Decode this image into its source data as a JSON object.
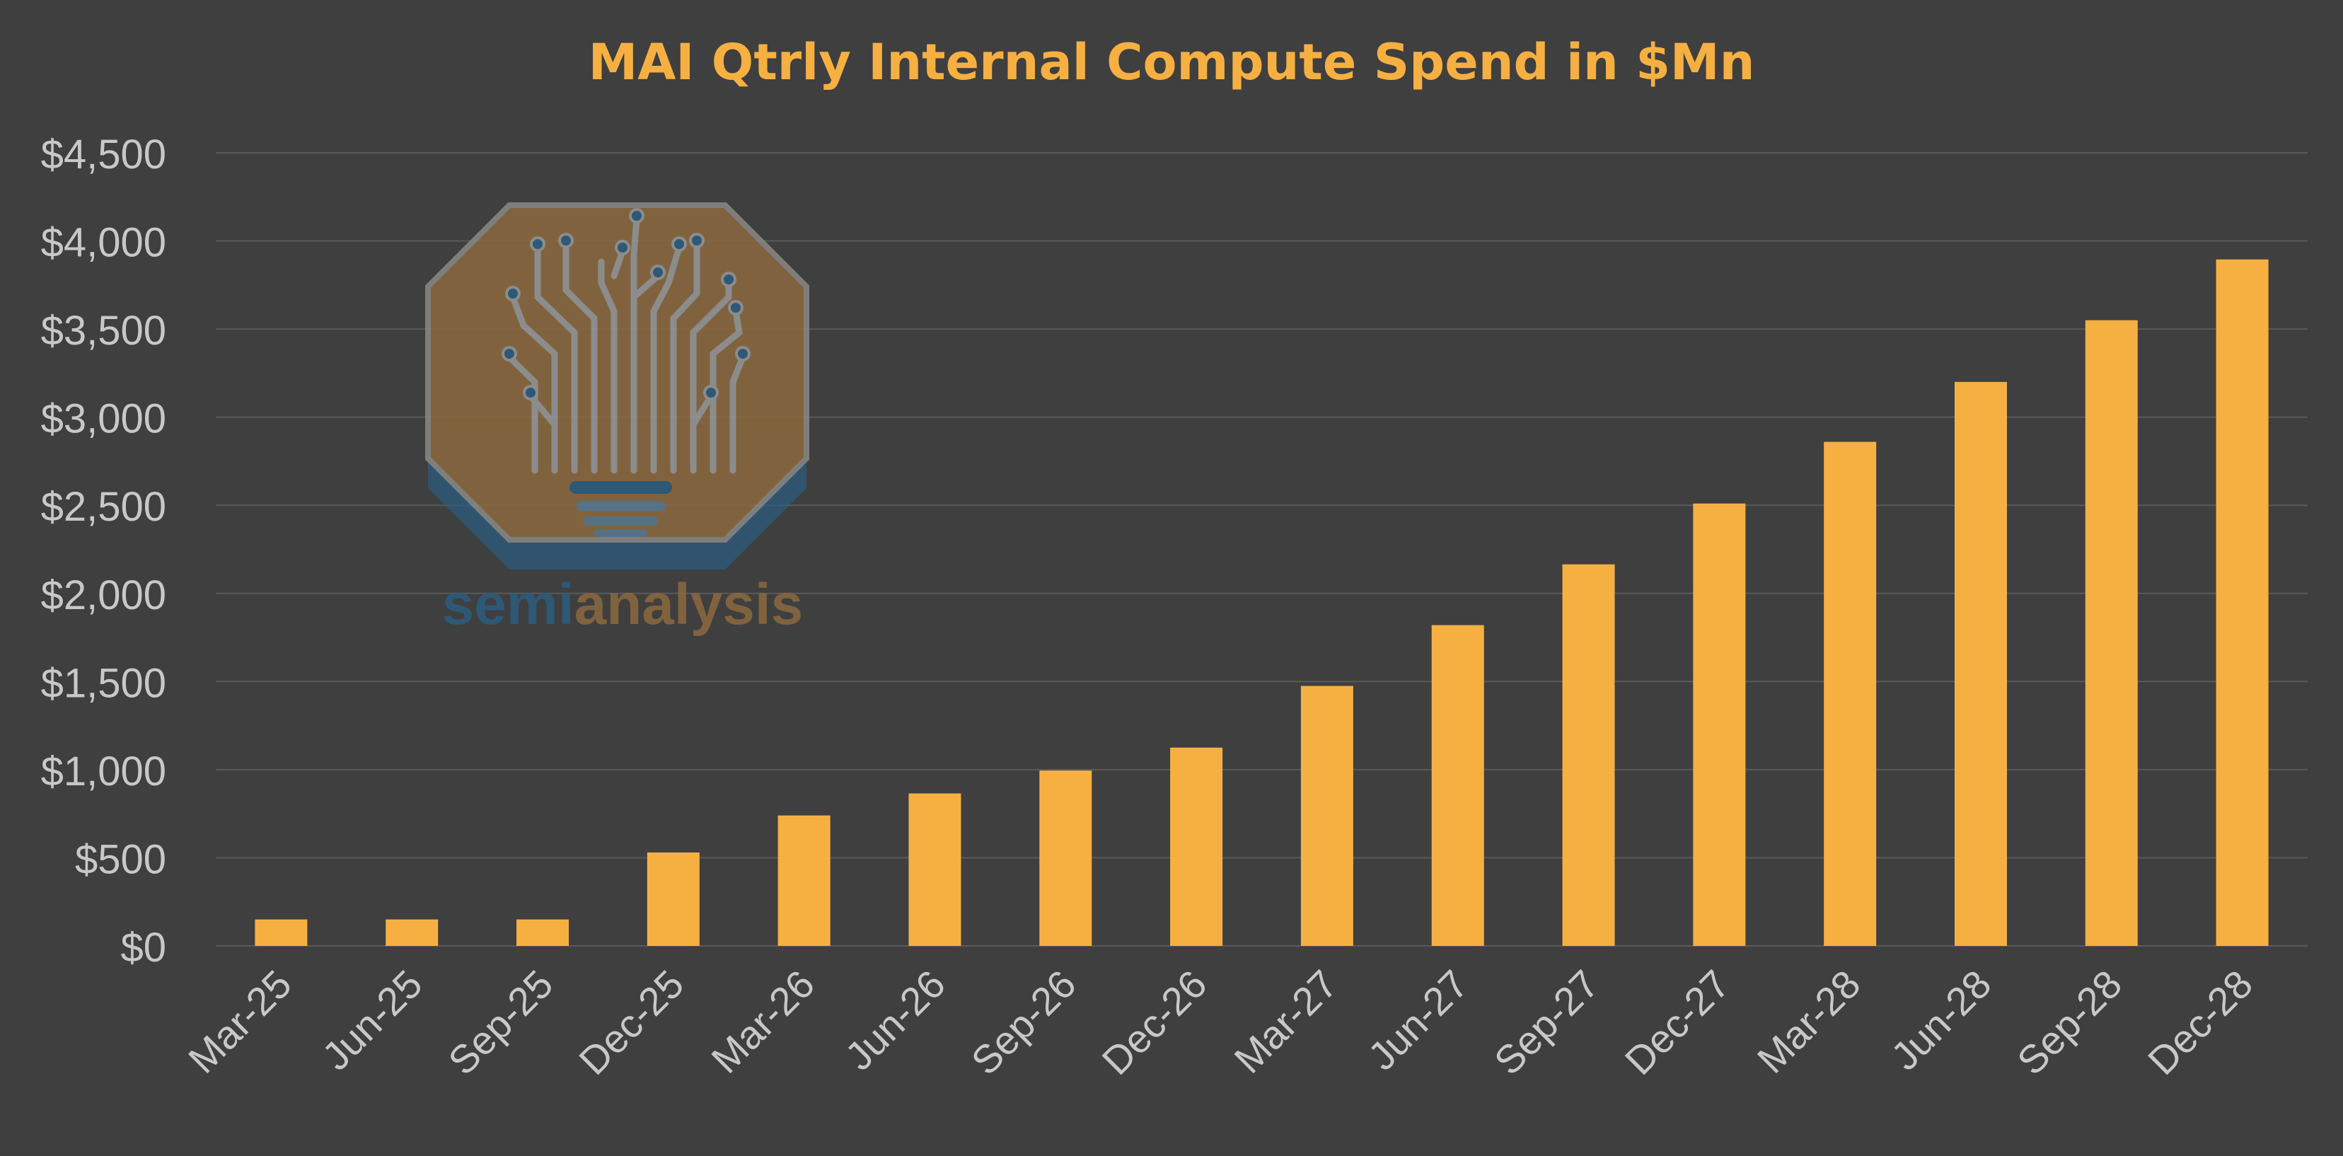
{
  "colors": {
    "background": "#3f3f3f",
    "bar": "#f6b042",
    "title": "#f6b042",
    "gridline": "#5a5a5a",
    "tick_text": "#c8c8c8",
    "logo_orange": "#8c6a3e",
    "logo_blue": "#2b5d80",
    "logo_gray": "#8a8a8a"
  },
  "watermark": {
    "brand_prefix": "semi",
    "brand_suffix": "analysis"
  },
  "chart_data": {
    "type": "bar",
    "title": "MAI Qtrly Internal Compute Spend in $Mn",
    "xlabel": "",
    "ylabel": "",
    "ylim": [
      0,
      4500
    ],
    "ytick_values": [
      0,
      500,
      1000,
      1500,
      2000,
      2500,
      3000,
      3500,
      4000,
      4500
    ],
    "ytick_labels": [
      "$0",
      "$500",
      "$1,000",
      "$1,500",
      "$2,000",
      "$2,500",
      "$3,000",
      "$3,500",
      "$4,000",
      "$4,500"
    ],
    "grid": true,
    "legend": "none",
    "categories": [
      "Mar-25",
      "Jun-25",
      "Sep-25",
      "Dec-25",
      "Mar-26",
      "Jun-26",
      "Sep-26",
      "Dec-26",
      "Mar-27",
      "Jun-27",
      "Sep-27",
      "Dec-27",
      "Mar-28",
      "Jun-28",
      "Sep-28",
      "Dec-28"
    ],
    "values": [
      150,
      150,
      150,
      530,
      740,
      865,
      995,
      1125,
      1475,
      1820,
      2165,
      2510,
      2860,
      3200,
      3550,
      3895
    ]
  }
}
